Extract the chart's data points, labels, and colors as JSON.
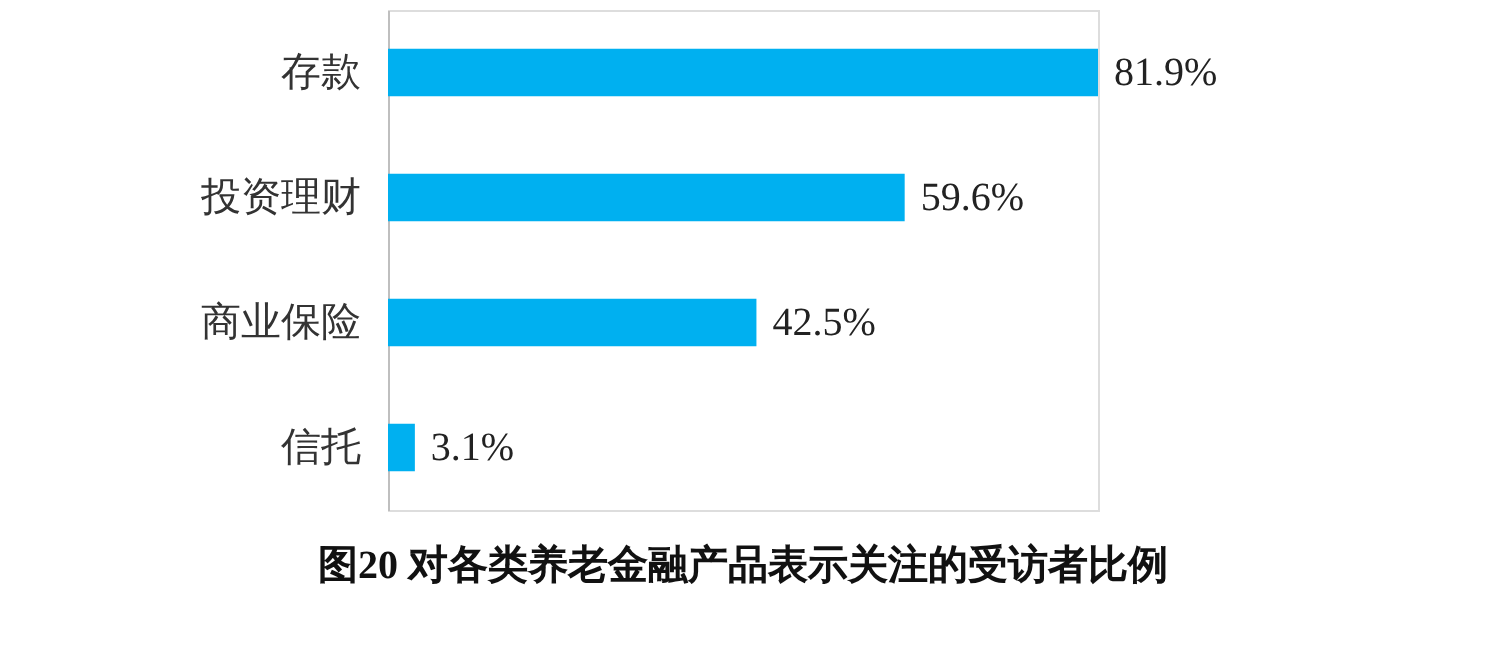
{
  "chart_data": {
    "type": "bar",
    "orientation": "horizontal",
    "title": "图20 对各类养老金融产品表示关注的受访者比例",
    "categories": [
      "存款",
      "投资理财",
      "商业保险",
      "信托"
    ],
    "values": [
      81.9,
      59.6,
      42.5,
      3.1
    ],
    "color": "#00b0f0",
    "value_labels": [
      "81.9%",
      "59.6%",
      "42.5%",
      "3.1%"
    ],
    "grid": false
  }
}
